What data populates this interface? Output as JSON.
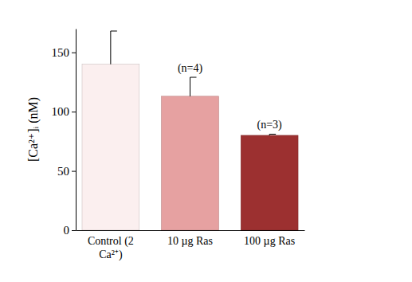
{
  "chart_data": {
    "type": "bar",
    "y_label": "[Ca²⁺]ᵢ (nM)",
    "categories": [
      "Control (2 Ca²⁺)",
      "10 µg Ras",
      "100 µg Ras"
    ],
    "values": [
      140,
      113,
      80
    ],
    "errors": [
      28,
      16,
      1
    ],
    "colors": [
      "#fbefef",
      "#e6a1a1",
      "#9c3030"
    ],
    "annotations": [
      {
        "category": "10 µg Ras",
        "text": "(n=4)"
      },
      {
        "category": "100 µg Ras",
        "text": "(n=3)"
      }
    ],
    "ylim": [
      0,
      170
    ],
    "yticks": [
      0,
      50,
      100,
      150
    ],
    "grid": false
  }
}
